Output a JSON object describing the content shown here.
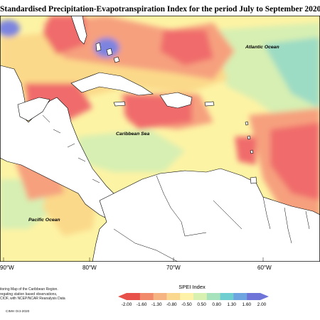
{
  "title": "Standardised Precipitation-Evapotranspiration Index for the period July to September 2020",
  "map_labels": {
    "atlantic": "Atlantic Ocean",
    "caribbean": "Caribbean Sea",
    "pacific": "Pacific Ocean"
  },
  "longitude_labels": [
    "90°W",
    "80°W",
    "70°W",
    "60°W"
  ],
  "credits_lines": [
    "itoring Map of the Caribbean Region.",
    "regating station based observations,",
    "CIOF, with NCEP/NCAR Reanalysis Data"
  ],
  "copyright": "CIMH Oct-2020",
  "legend": {
    "title": "SPEI Index",
    "ticks": [
      "-2.00",
      "-1.60",
      "-1.30",
      "-0.80",
      "-0.50",
      "0.50",
      "0.80",
      "1.30",
      "1.60",
      "2.00"
    ],
    "colors": [
      "#e8504a",
      "#f08a6a",
      "#f6b482",
      "#fbd890",
      "#fdf2a8",
      "#d8f0b0",
      "#a6e3bc",
      "#6fcfd0",
      "#6ea4e0",
      "#6f74d8"
    ]
  },
  "colors": {
    "dry_strong": "#f06c6c",
    "dry_moderate": "#f6a07e",
    "dry_mild": "#fbd98a",
    "near_normal": "#fdf3a4",
    "wet_mild": "#d7efb2",
    "wet_moderate": "#9ddcc4",
    "wet_strong": "#7b84e0",
    "land": "#ffffff",
    "border": "#000000"
  }
}
